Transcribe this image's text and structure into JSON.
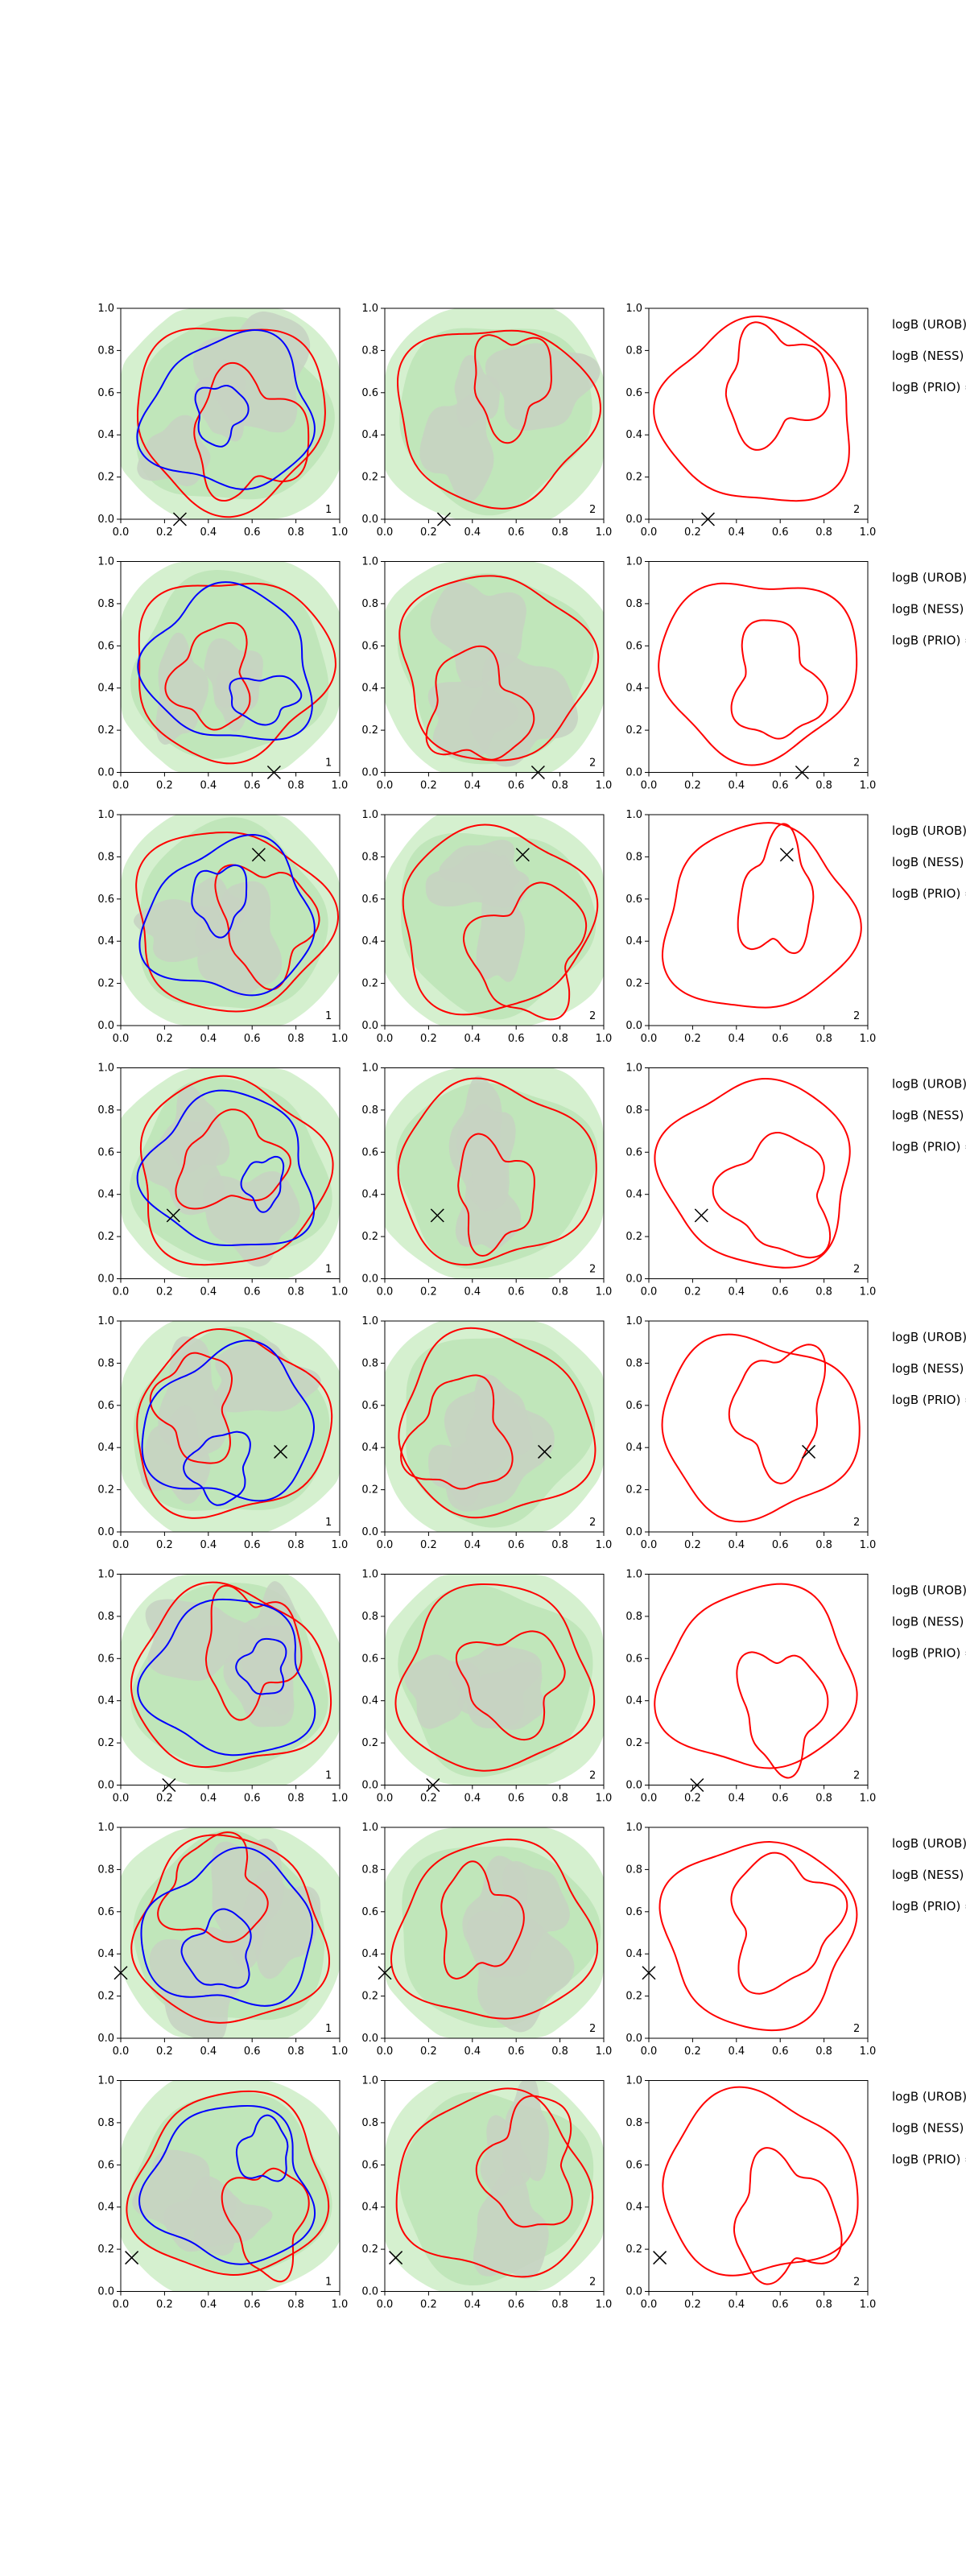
{
  "figure": {
    "layout": "8 rows x 3 columns of contour panels with a side annotation column",
    "axis": {
      "xlim": [
        0.0,
        1.0
      ],
      "ylim": [
        0.0,
        1.0
      ],
      "x_ticks": [
        "0.0",
        "0.2",
        "0.4",
        "0.6",
        "0.8",
        "1.0"
      ],
      "y_ticks": [
        "0.0",
        "0.2",
        "0.4",
        "0.6",
        "0.8",
        "1.0"
      ]
    },
    "colors": {
      "fill_light": "#d5f0cf",
      "fill_mid": "#c0e6ba",
      "fill_grey": "#c6d3c2",
      "contour_red": "#ff0000",
      "contour_blue": "#0000ff",
      "marker": "#000000"
    },
    "row_notes": [
      "logB (UROB) =",
      "logB (NESS) =",
      "logB (PRIO) ="
    ]
  },
  "chart_data": [
    {
      "type": "heatmap",
      "row": 1,
      "panels": [
        {
          "column": 1,
          "corner_label": "1"
        },
        {
          "column": 2,
          "corner_label": "2"
        },
        {
          "column": 3,
          "corner_label": "2"
        }
      ],
      "marker": {
        "x": 0.27,
        "y": 0.0
      },
      "notes": [
        "logB (UROB) =",
        "logB (NESS) =",
        "logB (PRIO) ="
      ]
    },
    {
      "type": "heatmap",
      "row": 2,
      "panels": [
        {
          "column": 1,
          "corner_label": "1"
        },
        {
          "column": 2,
          "corner_label": "2"
        },
        {
          "column": 3,
          "corner_label": "2"
        }
      ],
      "marker": {
        "x": 0.7,
        "y": 0.0
      },
      "notes": [
        "logB (UROB) =",
        "logB (NESS) =",
        "logB (PRIO) ="
      ]
    },
    {
      "type": "heatmap",
      "row": 3,
      "panels": [
        {
          "column": 1,
          "corner_label": "1"
        },
        {
          "column": 2,
          "corner_label": "2"
        },
        {
          "column": 3,
          "corner_label": "2"
        }
      ],
      "marker": {
        "x": 0.63,
        "y": 0.81
      },
      "notes": [
        "logB (UROB) =",
        "logB (NESS) =",
        "logB (PRIO) ="
      ]
    },
    {
      "type": "heatmap",
      "row": 4,
      "panels": [
        {
          "column": 1,
          "corner_label": "1"
        },
        {
          "column": 2,
          "corner_label": "2"
        },
        {
          "column": 3,
          "corner_label": "2"
        }
      ],
      "marker": {
        "x": 0.24,
        "y": 0.3
      },
      "notes": [
        "logB (UROB) =",
        "logB (NESS) =",
        "logB (PRIO) ="
      ]
    },
    {
      "type": "heatmap",
      "row": 5,
      "panels": [
        {
          "column": 1,
          "corner_label": "1"
        },
        {
          "column": 2,
          "corner_label": "2"
        },
        {
          "column": 3,
          "corner_label": "2"
        }
      ],
      "marker": {
        "x": 0.73,
        "y": 0.38
      },
      "notes": [
        "logB (UROB) =",
        "logB (NESS) =",
        "logB (PRIO) ="
      ]
    },
    {
      "type": "heatmap",
      "row": 6,
      "panels": [
        {
          "column": 1,
          "corner_label": "1"
        },
        {
          "column": 2,
          "corner_label": "2"
        },
        {
          "column": 3,
          "corner_label": "2"
        }
      ],
      "marker": {
        "x": 0.22,
        "y": 0.0
      },
      "notes": [
        "logB (UROB) =",
        "logB (NESS) =",
        "logB (PRIO) ="
      ]
    },
    {
      "type": "heatmap",
      "row": 7,
      "panels": [
        {
          "column": 1,
          "corner_label": "1"
        },
        {
          "column": 2,
          "corner_label": "2"
        },
        {
          "column": 3,
          "corner_label": "2"
        }
      ],
      "marker": {
        "x": 0.0,
        "y": 0.31
      },
      "notes": [
        "logB (UROB) =",
        "logB (NESS) =",
        "logB (PRIO) ="
      ]
    },
    {
      "type": "heatmap",
      "row": 8,
      "panels": [
        {
          "column": 1,
          "corner_label": "1"
        },
        {
          "column": 2,
          "corner_label": "2"
        },
        {
          "column": 3,
          "corner_label": "2"
        }
      ],
      "marker": {
        "x": 0.05,
        "y": 0.16
      },
      "notes": [
        "logB (UROB) =",
        "logB (NESS) =",
        "logB (PRIO) ="
      ]
    }
  ]
}
